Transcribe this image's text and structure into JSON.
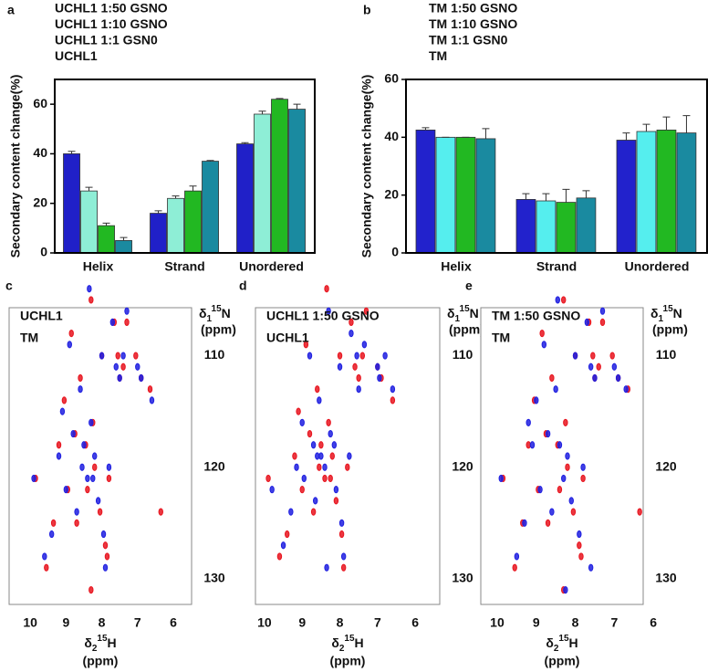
{
  "chart_data": [
    {
      "type": "bar",
      "panel_label": "a",
      "y_label": "Secondary content change(%)",
      "categories": [
        "Helix",
        "Strand",
        "Unordered"
      ],
      "ylim": [
        0,
        70
      ],
      "yticks": [
        0,
        20,
        40,
        60
      ],
      "series": [
        {
          "name": "UCHL1",
          "color": "#2020c8",
          "values": [
            40,
            16,
            44
          ],
          "errors": [
            1,
            1,
            0.5
          ]
        },
        {
          "name": "UCHL1 1:1 GSN0",
          "color": "#8eeed6",
          "values": [
            25,
            22,
            56
          ],
          "errors": [
            1.5,
            1,
            1.2
          ]
        },
        {
          "name": "UCHL1 1:10 GSNO",
          "color": "#22b822",
          "values": [
            11,
            25,
            62
          ],
          "errors": [
            1,
            2,
            0.3
          ]
        },
        {
          "name": "UCHL1 1:50 GSNO",
          "color": "#1a8aa0",
          "values": [
            5,
            37,
            58
          ],
          "errors": [
            1.2,
            0.3,
            2
          ]
        }
      ]
    },
    {
      "type": "bar",
      "panel_label": "b",
      "y_label": "Secondary content change(%)",
      "categories": [
        "Helix",
        "Strand",
        "Unordered"
      ],
      "ylim": [
        0,
        60
      ],
      "yticks": [
        0,
        20,
        40,
        60
      ],
      "series": [
        {
          "name": "TM",
          "color": "#2222cc",
          "values": [
            42.5,
            18.5,
            39
          ],
          "errors": [
            0.8,
            2,
            2.5
          ]
        },
        {
          "name": "TM 1:1 GSN0",
          "color": "#55eeee",
          "values": [
            40,
            18,
            42
          ],
          "errors": [
            0,
            2.5,
            2.5
          ]
        },
        {
          "name": "TM 1:10 GSNO",
          "color": "#22b822",
          "values": [
            40,
            17.5,
            42.5
          ],
          "errors": [
            0,
            4.5,
            4.5
          ]
        },
        {
          "name": "TM 1:50 GSNO",
          "color": "#1a8aa0",
          "values": [
            39.5,
            19,
            41.5
          ],
          "errors": [
            3.5,
            2.5,
            6
          ]
        }
      ]
    },
    {
      "type": "scatter",
      "panel_label": "c",
      "x_label": [
        "δ",
        "2",
        "15",
        "H"
      ],
      "x_unit": "(ppm)",
      "y_label": [
        "δ",
        "1",
        "15",
        "N"
      ],
      "y_unit": "(ppm)",
      "xlim": [
        10.59,
        5.49
      ],
      "xticks": [
        10,
        9,
        8,
        7,
        6
      ],
      "ylim": [
        105.7,
        132.3
      ],
      "yticks": [
        110,
        120,
        130
      ],
      "series": [
        {
          "name": "UCHL1",
          "color": "#1f1fe0",
          "x": [
            9.9,
            9.6,
            9.4,
            9.2,
            9.1,
            9.0,
            8.9,
            8.8,
            8.7,
            8.6,
            8.5,
            8.4,
            8.35,
            8.3,
            8.2,
            8.1,
            8.0,
            7.95,
            7.9,
            7.8,
            7.7,
            7.6,
            7.5,
            7.4,
            7.3,
            7.0,
            6.9,
            6.6,
            8.25,
            8.55
          ],
          "y": [
            121,
            128,
            126,
            119,
            115,
            122,
            109,
            117,
            124,
            113,
            118,
            121,
            104,
            116,
            119,
            123,
            110,
            126,
            129,
            120,
            107,
            111,
            112,
            110,
            106,
            111,
            112,
            114,
            121,
            120
          ]
        },
        {
          "name": "TM",
          "color": "#e8141e",
          "x": [
            9.85,
            9.55,
            9.35,
            9.2,
            9.05,
            8.95,
            8.85,
            8.75,
            8.7,
            8.6,
            8.45,
            8.4,
            8.3,
            8.25,
            8.2,
            8.05,
            8.0,
            7.9,
            7.85,
            7.8,
            7.65,
            7.55,
            7.5,
            7.4,
            7.3,
            7.05,
            6.9,
            6.65,
            8.3,
            6.35
          ],
          "y": [
            121,
            129,
            125,
            118,
            114,
            122,
            108,
            117,
            125,
            112,
            118,
            122,
            105,
            116,
            120,
            124,
            110,
            127,
            128,
            121,
            107,
            110,
            112,
            111,
            107,
            110,
            112,
            113,
            131,
            124
          ]
        }
      ]
    },
    {
      "type": "scatter",
      "panel_label": "d",
      "x_label": [
        "δ",
        "2",
        "15",
        "H"
      ],
      "x_unit": "(ppm)",
      "y_label": [
        "δ",
        "1",
        "15",
        "N"
      ],
      "y_unit": "(ppm)",
      "xlim": [
        10.24,
        5.35
      ],
      "xticks": [
        10,
        9,
        8,
        7,
        6
      ],
      "ylim": [
        105.7,
        132.3
      ],
      "yticks": [
        110,
        120,
        130
      ],
      "series": [
        {
          "name": "UCHL1 1:50 GSNO",
          "color": "#1f1fe0",
          "x": [
            9.8,
            9.5,
            9.3,
            9.15,
            9.0,
            8.95,
            8.8,
            8.7,
            8.65,
            8.55,
            8.5,
            8.4,
            8.3,
            8.25,
            8.15,
            8.1,
            8.0,
            7.95,
            7.9,
            7.75,
            7.7,
            7.55,
            7.5,
            7.35,
            7.0,
            6.95,
            6.8,
            6.6,
            8.35,
            8.6
          ],
          "y": [
            122,
            127,
            124,
            120,
            116,
            121,
            110,
            118,
            123,
            114,
            119,
            120,
            106,
            117,
            118,
            122,
            111,
            125,
            128,
            119,
            108,
            110,
            113,
            109,
            111,
            112,
            110,
            113,
            129,
            119
          ]
        },
        {
          "name": "UCHL1",
          "color": "#e8141e",
          "x": [
            9.9,
            9.6,
            9.4,
            9.2,
            9.1,
            9.0,
            8.9,
            8.8,
            8.7,
            8.6,
            8.5,
            8.4,
            8.35,
            8.3,
            8.2,
            8.1,
            8.0,
            7.95,
            7.9,
            7.8,
            7.7,
            7.6,
            7.5,
            7.4,
            7.3,
            7.0,
            6.9,
            6.6,
            8.25,
            8.55
          ],
          "y": [
            121,
            128,
            126,
            119,
            115,
            122,
            109,
            117,
            124,
            113,
            118,
            121,
            104,
            116,
            119,
            123,
            110,
            126,
            129,
            120,
            107,
            111,
            112,
            110,
            106,
            111,
            112,
            114,
            121,
            120
          ]
        }
      ]
    },
    {
      "type": "scatter",
      "panel_label": "e",
      "x_label": [
        "δ",
        "2",
        "15",
        "H"
      ],
      "x_unit": "(ppm)",
      "y_label": [
        "δ",
        "1",
        "15",
        "N"
      ],
      "y_unit": "(ppm)",
      "xlim": [
        10.42,
        6.26
      ],
      "xticks": [
        10,
        9,
        8,
        7,
        6
      ],
      "ylim": [
        105.7,
        132.3
      ],
      "yticks": [
        110,
        120,
        130
      ],
      "series": [
        {
          "name": "TM 1:50 GSNO",
          "color": "#1f1fe0",
          "x": [
            9.9,
            9.5,
            9.3,
            9.1,
            9.0,
            8.9,
            8.8,
            8.7,
            8.6,
            8.5,
            8.4,
            8.3,
            8.2,
            8.1,
            8.0,
            7.9,
            7.8,
            7.7,
            7.6,
            7.5,
            7.3,
            7.0,
            6.9,
            6.7,
            8.25,
            8.45,
            9.2,
            7.6
          ],
          "y": [
            121,
            128,
            125,
            118,
            114,
            122,
            109,
            117,
            124,
            113,
            118,
            121,
            119,
            123,
            110,
            126,
            120,
            107,
            111,
            112,
            106,
            111,
            112,
            113,
            131,
            105,
            116,
            129
          ]
        },
        {
          "name": "TM",
          "color": "#e8141e",
          "x": [
            9.85,
            9.55,
            9.35,
            9.2,
            9.05,
            8.95,
            8.85,
            8.75,
            8.7,
            8.6,
            8.45,
            8.4,
            8.3,
            8.25,
            8.2,
            8.05,
            8.0,
            7.9,
            7.85,
            7.8,
            7.65,
            7.55,
            7.5,
            7.4,
            7.3,
            7.05,
            6.9,
            6.65,
            8.3,
            6.35
          ],
          "y": [
            121,
            129,
            125,
            118,
            114,
            122,
            108,
            117,
            125,
            112,
            118,
            122,
            105,
            116,
            120,
            124,
            110,
            127,
            128,
            121,
            107,
            110,
            112,
            111,
            107,
            110,
            112,
            113,
            131,
            124
          ]
        }
      ]
    }
  ]
}
